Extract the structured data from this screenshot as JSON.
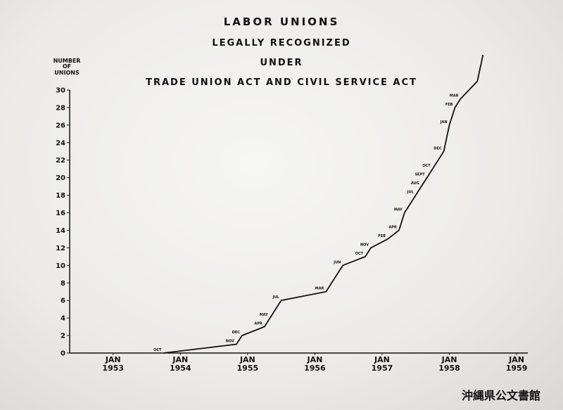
{
  "chart_data": {
    "type": "line",
    "title": "LABOR UNIONS",
    "subtitles": [
      "LEGALLY RECOGNIZED",
      "UNDER",
      "TRADE UNION ACT AND CIVIL SERVICE ACT"
    ],
    "y_label": "NUMBER\nOF\nUNIONS",
    "x": [
      "1953-10",
      "1954-11",
      "1954-12",
      "1955-04",
      "1955-05",
      "1955-07",
      "1956-03",
      "1956-06",
      "1956-10",
      "1956-11",
      "1957-02",
      "1957-04",
      "1957-05",
      "1957-07",
      "1957-08",
      "1957-09",
      "1957-10",
      "1957-12",
      "1958-01",
      "1958-02",
      "1958-03",
      "1958-06",
      "1958-07"
    ],
    "values": [
      0,
      1,
      2,
      3,
      4,
      6,
      7,
      10,
      11,
      12,
      13,
      14,
      16,
      18,
      19,
      20,
      21,
      23,
      26,
      28,
      29,
      31,
      34
    ],
    "point_labels": [
      "OCT",
      "NOV",
      "DEC",
      "APR",
      "MAY",
      "JUL",
      "MAR",
      "JUN",
      "OCT",
      "NOV",
      "FEB",
      "APR",
      "MAY",
      "JUL",
      "AUG",
      "SEPT",
      "OCT",
      "DEC",
      "JAN",
      "FEB",
      "MAR",
      null,
      null
    ],
    "color": "#111111",
    "xlim": [
      "1952-06",
      "1959-03"
    ],
    "xticks": [
      {
        "value": "1953-01",
        "label": "JAN\n1953"
      },
      {
        "value": "1954-01",
        "label": "JAN\n1954"
      },
      {
        "value": "1955-01",
        "label": "JAN\n1955"
      },
      {
        "value": "1956-01",
        "label": "JAN\n1956"
      },
      {
        "value": "1957-01",
        "label": "JAN\n1957"
      },
      {
        "value": "1958-01",
        "label": "JAN\n1958"
      },
      {
        "value": "1959-01",
        "label": "JAN\n1959"
      }
    ],
    "ylim": [
      0,
      30
    ],
    "yticks": [
      0,
      2,
      4,
      6,
      8,
      10,
      12,
      14,
      16,
      18,
      20,
      22,
      24,
      26,
      28,
      30
    ],
    "grid": false,
    "watermark": "沖縄県公文書館"
  }
}
